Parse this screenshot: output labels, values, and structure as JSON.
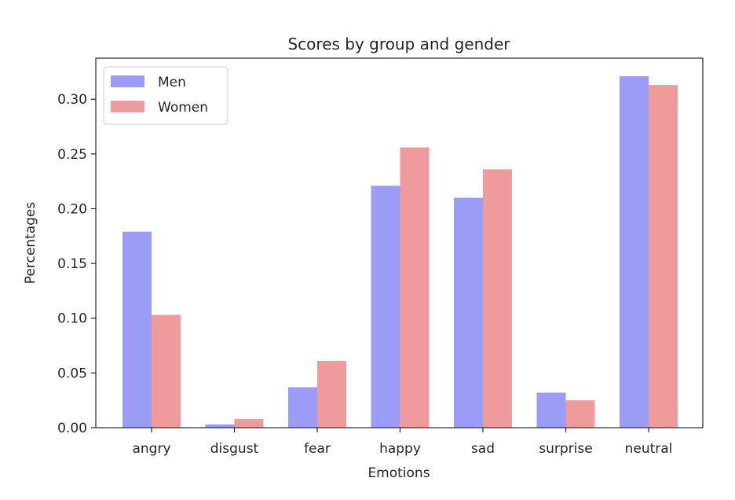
{
  "chart_data": {
    "type": "bar",
    "title": "Scores by group and gender",
    "xlabel": "Emotions",
    "ylabel": "Percentages",
    "categories": [
      "angry",
      "disgust",
      "fear",
      "happy",
      "sad",
      "surprise",
      "neutral"
    ],
    "series": [
      {
        "name": "Men",
        "color": "#9a9cf5",
        "values": [
          0.179,
          0.003,
          0.037,
          0.221,
          0.21,
          0.032,
          0.321
        ]
      },
      {
        "name": "Women",
        "color": "#f09b9b",
        "values": [
          0.103,
          0.008,
          0.061,
          0.256,
          0.236,
          0.025,
          0.313
        ]
      }
    ],
    "ylim": [
      0,
      0.3375
    ],
    "yticks": [
      0.0,
      0.05,
      0.1,
      0.15,
      0.2,
      0.25,
      0.3
    ],
    "ytick_labels": [
      "0.00",
      "0.05",
      "0.10",
      "0.15",
      "0.20",
      "0.25",
      "0.30"
    ],
    "legend_position": "top-left",
    "grid": false
  }
}
